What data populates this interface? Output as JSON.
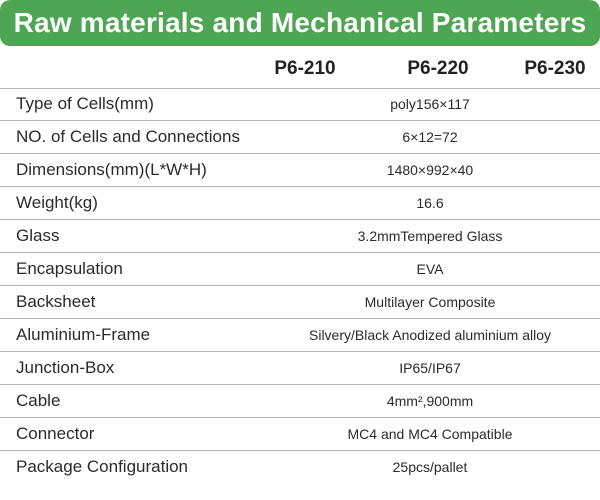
{
  "header": {
    "title": "Raw materials and Mechanical Parameters"
  },
  "columns": [
    "P6-210",
    "P6-220",
    "P6-230"
  ],
  "rows": [
    {
      "label": "Type of Cells(mm)",
      "value": "poly156×117"
    },
    {
      "label": "NO. of Cells and Connections",
      "value": "6×12=72"
    },
    {
      "label": "Dimensions(mm)(L*W*H)",
      "value": "1480×992×40"
    },
    {
      "label": "Weight(kg)",
      "value": "16.6"
    },
    {
      "label": "Glass",
      "value": "3.2mmTempered Glass"
    },
    {
      "label": "Encapsulation",
      "value": "EVA"
    },
    {
      "label": "Backsheet",
      "value": "Multilayer Composite"
    },
    {
      "label": "Aluminium-Frame",
      "value": "Silvery/Black Anodized aluminium alloy"
    },
    {
      "label": "Junction-Box",
      "value": "IP65/IP67"
    },
    {
      "label": "Cable",
      "value": "4mm²,900mm"
    },
    {
      "label": "Connector",
      "value": "MC4 and MC4 Compatible"
    },
    {
      "label": "Package Configuration",
      "value": "25pcs/pallet"
    }
  ],
  "colors": {
    "banner": "#4ea553",
    "banner_text": "#ffffff",
    "rule": "#b5b5b5"
  }
}
